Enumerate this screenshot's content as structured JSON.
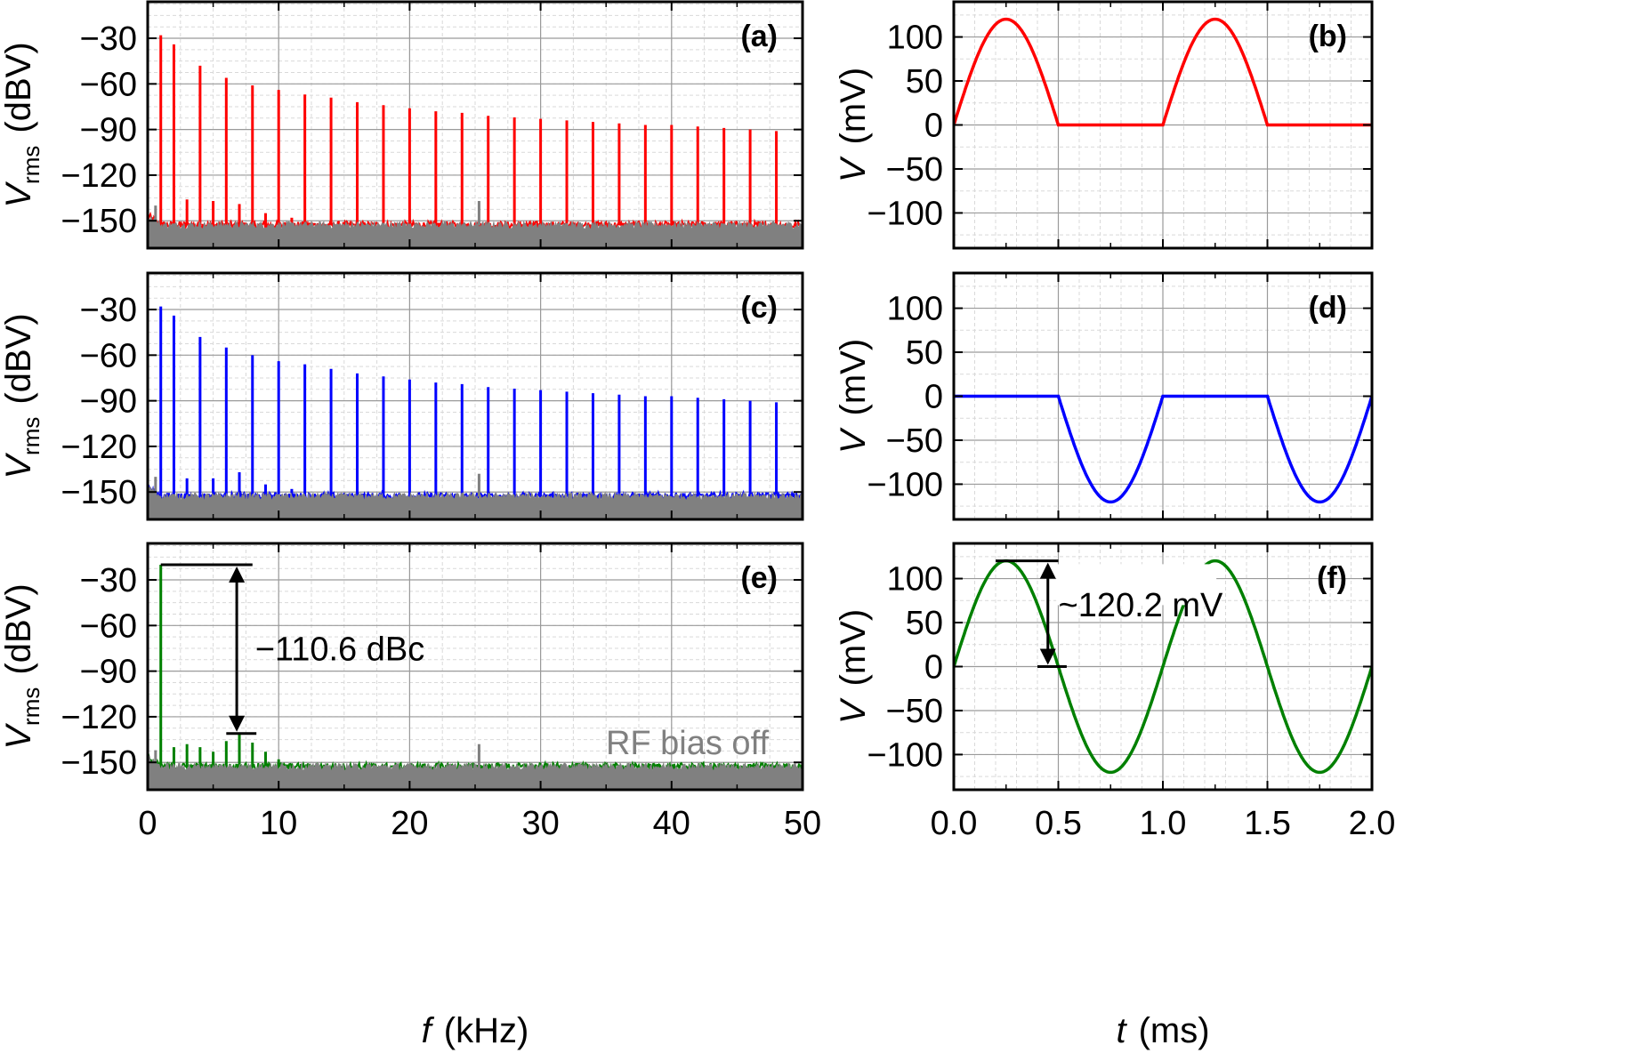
{
  "colors": {
    "red": "#ff0000",
    "blue": "#0000ff",
    "green": "#008000",
    "gray": "#808080"
  },
  "chart_data": [
    {
      "panel": "(a)",
      "type": "line",
      "xlabel_var": "",
      "xlabel_unit": "",
      "ylabel_var": "V",
      "ylabel_sub": "rms",
      "ylabel_unit": "(dBV)",
      "xlim": [
        0,
        50
      ],
      "ylim": [
        -168,
        -6
      ],
      "xticks": [],
      "yticks": [
        -30,
        -60,
        -90,
        -120,
        -150
      ],
      "series": [
        {
          "color": "#ff0000",
          "noise_floor": -153,
          "peaks": [
            [
              1,
              -28
            ],
            [
              2,
              -34
            ],
            [
              3,
              -136
            ],
            [
              4,
              -48
            ],
            [
              5,
              -137
            ],
            [
              6,
              -56
            ],
            [
              7,
              -139
            ],
            [
              8,
              -61
            ],
            [
              9,
              -145
            ],
            [
              10,
              -64
            ],
            [
              11,
              -148
            ],
            [
              12,
              -67
            ],
            [
              14,
              -69
            ],
            [
              16,
              -72
            ],
            [
              18,
              -74
            ],
            [
              20,
              -76
            ],
            [
              22,
              -78
            ],
            [
              24,
              -79
            ],
            [
              26,
              -81
            ],
            [
              28,
              -82
            ],
            [
              30,
              -83
            ],
            [
              32,
              -84
            ],
            [
              34,
              -85
            ],
            [
              36,
              -86
            ],
            [
              38,
              -87
            ],
            [
              40,
              -87
            ],
            [
              42,
              -88
            ],
            [
              44,
              -89
            ],
            [
              46,
              -90
            ],
            [
              48,
              -91
            ]
          ]
        },
        {
          "color": "#808080",
          "noise_floor": -153,
          "peaks": [
            [
              25.3,
              -137
            ],
            [
              0.6,
              -140
            ]
          ]
        }
      ]
    },
    {
      "panel": "(b)",
      "type": "line",
      "xlabel_var": "",
      "xlabel_unit": "",
      "ylabel_var": "V",
      "ylabel_sub": "",
      "ylabel_unit": "(mV)",
      "xlim": [
        0,
        2
      ],
      "ylim": [
        -140,
        140
      ],
      "xticks": [],
      "yticks": [
        100,
        50,
        0,
        -50,
        -100
      ],
      "waveform": "halfwave_positive",
      "amplitude_mv": 120.2,
      "period_ms": 1.0,
      "series": [
        {
          "color": "#ff0000"
        }
      ]
    },
    {
      "panel": "(c)",
      "type": "line",
      "xlabel_var": "",
      "xlabel_unit": "",
      "ylabel_var": "V",
      "ylabel_sub": "rms",
      "ylabel_unit": "(dBV)",
      "xlim": [
        0,
        50
      ],
      "ylim": [
        -168,
        -6
      ],
      "xticks": [],
      "yticks": [
        -30,
        -60,
        -90,
        -120,
        -150
      ],
      "series": [
        {
          "color": "#0000ff",
          "noise_floor": -153,
          "peaks": [
            [
              1,
              -28
            ],
            [
              2,
              -34
            ],
            [
              3,
              -141
            ],
            [
              4,
              -48
            ],
            [
              5,
              -141
            ],
            [
              6,
              -55
            ],
            [
              7,
              -137
            ],
            [
              8,
              -60
            ],
            [
              9,
              -145
            ],
            [
              10,
              -64
            ],
            [
              11,
              -148
            ],
            [
              12,
              -66
            ],
            [
              14,
              -69
            ],
            [
              16,
              -72
            ],
            [
              18,
              -74
            ],
            [
              20,
              -76
            ],
            [
              22,
              -78
            ],
            [
              24,
              -79
            ],
            [
              26,
              -81
            ],
            [
              28,
              -82
            ],
            [
              30,
              -83
            ],
            [
              32,
              -84
            ],
            [
              34,
              -85
            ],
            [
              36,
              -86
            ],
            [
              38,
              -87
            ],
            [
              40,
              -87
            ],
            [
              42,
              -88
            ],
            [
              44,
              -89
            ],
            [
              46,
              -90
            ],
            [
              48,
              -91
            ]
          ]
        },
        {
          "color": "#808080",
          "noise_floor": -153,
          "peaks": [
            [
              25.3,
              -138
            ],
            [
              0.6,
              -140
            ]
          ]
        }
      ]
    },
    {
      "panel": "(d)",
      "type": "line",
      "xlabel_var": "",
      "xlabel_unit": "",
      "ylabel_var": "V",
      "ylabel_sub": "",
      "ylabel_unit": "(mV)",
      "xlim": [
        0,
        2
      ],
      "ylim": [
        -140,
        140
      ],
      "xticks": [],
      "yticks": [
        100,
        50,
        0,
        -50,
        -100
      ],
      "waveform": "halfwave_negative",
      "amplitude_mv": 120.2,
      "period_ms": 1.0,
      "series": [
        {
          "color": "#0000ff"
        }
      ]
    },
    {
      "panel": "(e)",
      "type": "line",
      "xlabel_var": "f",
      "xlabel_unit": "(kHz)",
      "ylabel_var": "V",
      "ylabel_sub": "rms",
      "ylabel_unit": "(dBV)",
      "xlim": [
        0,
        50
      ],
      "ylim": [
        -168,
        -6
      ],
      "xticks": [
        0,
        10,
        20,
        30,
        40,
        50
      ],
      "yticks": [
        -30,
        -60,
        -90,
        -120,
        -150
      ],
      "series": [
        {
          "color": "#008000",
          "noise_floor": -153,
          "peaks": [
            [
              1,
              -20
            ],
            [
              2,
              -140
            ],
            [
              3,
              -138
            ],
            [
              4,
              -140
            ],
            [
              5,
              -143
            ],
            [
              6,
              -136
            ],
            [
              7,
              -131
            ],
            [
              8,
              -137
            ],
            [
              9,
              -143
            ],
            [
              10,
              -148
            ]
          ]
        },
        {
          "color": "#808080",
          "noise_floor": -153,
          "peaks": [
            [
              25.3,
              -138
            ],
            [
              0.6,
              -142
            ]
          ]
        }
      ],
      "annotations": {
        "dbc_text": "−110.6 dBc",
        "rf_text": "RF bias off"
      }
    },
    {
      "panel": "(f)",
      "type": "line",
      "xlabel_var": "t",
      "xlabel_unit": "(ms)",
      "ylabel_var": "V",
      "ylabel_sub": "",
      "ylabel_unit": "(mV)",
      "xlim": [
        0,
        2
      ],
      "ylim": [
        -140,
        140
      ],
      "xticks": [
        "0.0",
        "0.5",
        "1.0",
        "1.5",
        "2.0"
      ],
      "yticks": [
        100,
        50,
        0,
        -50,
        -100
      ],
      "waveform": "sine",
      "amplitude_mv": 120.2,
      "period_ms": 1.0,
      "series": [
        {
          "color": "#008000"
        }
      ],
      "annotations": {
        "amp_text": "~120.2 mV"
      }
    }
  ]
}
